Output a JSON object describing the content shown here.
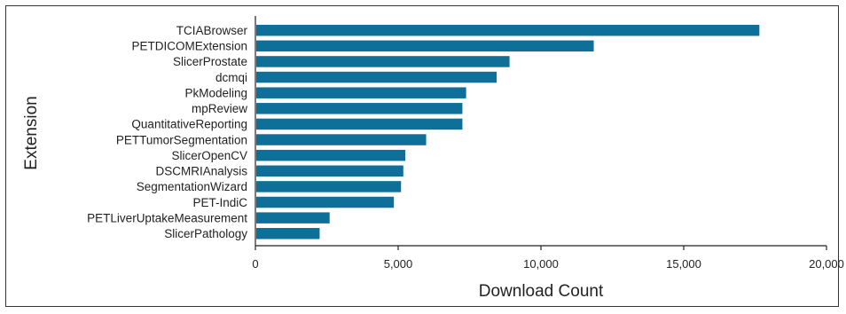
{
  "chart_data": {
    "type": "bar",
    "orientation": "horizontal",
    "categories": [
      "TCIABrowser",
      "PETDICOMExtension",
      "SlicerProstate",
      "dcmqi",
      "PkModeling",
      "mpReview",
      "QuantitativeReporting",
      "PETTumorSegmentation",
      "SlicerOpenCV",
      "DSCMRIAnalysis",
      "SegmentationWizard",
      "PET-IndiC",
      "PETLiverUptakeMeasurement",
      "SlicerPathology"
    ],
    "values": [
      17650,
      11850,
      8900,
      8450,
      7380,
      7250,
      7250,
      5980,
      5250,
      5180,
      5100,
      4850,
      2600,
      2250
    ],
    "xlabel": "Download Count",
    "ylabel": "Extension",
    "xlim": [
      0,
      20000
    ],
    "xticks": [
      0,
      5000,
      10000,
      15000,
      20000
    ],
    "xtick_labels": [
      "0",
      "5,000",
      "10,000",
      "15,000",
      "20,000"
    ],
    "bar_color": "#0e7099",
    "grid": false
  }
}
